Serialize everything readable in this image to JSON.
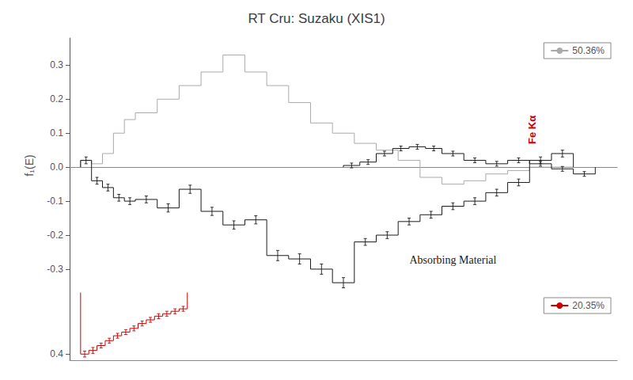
{
  "chart_data": [
    {
      "type": "step",
      "title": "RT Cru: Suzaku (XIS1)",
      "ylabel": "f₁(E)",
      "xlim": [
        1.3,
        11.3
      ],
      "xticks": [],
      "ylim": [
        -0.37,
        0.38
      ],
      "yticks": [
        -0.3,
        -0.2,
        -0.1,
        {
          "value": 0,
          "label": "0.0"
        },
        0.1,
        0.2,
        0.3
      ],
      "tick_labels": "y",
      "grid": false,
      "legend": "upper right",
      "annotations": [
        {
          "text": "Fe Kα",
          "color": "#cc0000"
        },
        {
          "text": "Absorbing Material",
          "color": "#1a1a1a"
        }
      ],
      "series": [
        {
          "name": "50.36%",
          "color": "#aaaaaa",
          "bins": [
            1.5,
            1.7,
            1.9,
            2.1,
            2.3,
            2.5,
            2.9,
            3.3,
            3.7,
            4.1,
            4.5,
            4.9,
            5.3,
            5.7,
            6.1,
            6.5,
            6.9,
            7.3,
            7.7,
            8.1,
            8.5,
            8.9,
            9.3,
            9.7,
            10.1,
            10.5
          ],
          "values": [
            0.02,
            0.01,
            0.04,
            0.1,
            0.14,
            0.16,
            0.2,
            0.24,
            0.28,
            0.33,
            0.28,
            0.24,
            0.19,
            0.13,
            0.1,
            0.07,
            0.05,
            0.02,
            -0.03,
            -0.05,
            -0.04,
            -0.02,
            -0.01,
            0.0,
            0.0
          ]
        },
        {
          "color": "#1a1a1a",
          "bins": [
            1.5,
            1.7,
            1.9,
            2.1,
            2.3,
            2.5,
            2.9,
            3.3,
            3.7,
            4.1,
            4.5,
            4.9,
            5.3,
            5.7,
            6.1,
            6.5,
            6.9,
            7.3,
            7.7,
            8.1,
            8.5,
            8.9,
            9.3,
            9.7,
            10.1,
            10.5
          ],
          "values": [
            0.02,
            -0.04,
            -0.06,
            -0.09,
            -0.1,
            -0.095,
            -0.12,
            -0.065,
            -0.13,
            -0.17,
            -0.155,
            -0.26,
            -0.27,
            -0.3,
            -0.34,
            -0.22,
            -0.2,
            -0.16,
            -0.14,
            -0.115,
            -0.1,
            -0.075,
            -0.045,
            0.02,
            0.04
          ],
          "error_x": [
            1.6,
            1.8,
            2.0,
            2.2,
            2.4,
            2.7,
            3.1,
            3.5,
            3.9,
            4.3,
            4.7,
            5.1,
            5.5,
            5.9,
            6.3,
            6.7,
            7.1,
            7.5,
            7.9,
            8.3,
            8.7,
            9.1,
            9.5,
            9.9,
            10.3
          ],
          "errors": [
            0.01,
            0.01,
            0.01,
            0.01,
            0.01,
            0.01,
            0.012,
            0.012,
            0.012,
            0.012,
            0.012,
            0.015,
            0.015,
            0.015,
            0.015,
            0.01,
            0.01,
            0.01,
            0.01,
            0.01,
            0.01,
            0.01,
            0.01,
            0.01,
            0.01
          ]
        },
        {
          "color": "#1a1a1a",
          "bins": [
            6.3,
            6.6,
            6.9,
            7.2,
            7.5,
            7.8,
            8.1,
            8.5,
            8.9,
            9.3,
            9.7,
            10.1,
            10.5,
            10.9
          ],
          "values": [
            0.005,
            0.015,
            0.04,
            0.055,
            0.06,
            0.055,
            0.04,
            0.02,
            0.01,
            0.02,
            0.01,
            -0.005,
            -0.02
          ],
          "error_x": [
            6.45,
            6.75,
            7.05,
            7.35,
            7.65,
            7.95,
            8.3,
            8.7,
            9.1,
            9.5,
            9.9,
            10.3,
            10.7
          ],
          "errors": [
            0.007,
            0.007,
            0.007,
            0.007,
            0.007,
            0.007,
            0.007,
            0.007,
            0.007,
            0.007,
            0.007,
            0.007,
            0.007
          ]
        }
      ]
    },
    {
      "type": "step",
      "xlim": [
        1.3,
        11.3
      ],
      "xticks": [],
      "ylim": [
        0.425,
        0.15
      ],
      "yticks": [
        0.4
      ],
      "tick_labels": "y",
      "grid": false,
      "legend": "upper right",
      "series": [
        {
          "name": "20.35%",
          "color": "#cc0000",
          "bins": [
            1.5,
            1.65,
            1.8,
            1.95,
            2.1,
            2.25,
            2.4,
            2.55,
            2.7,
            2.85,
            3.0,
            3.15,
            3.3,
            3.45
          ],
          "values": [
            0.4,
            0.385,
            0.365,
            0.345,
            0.325,
            0.31,
            0.295,
            0.275,
            0.26,
            0.245,
            0.235,
            0.225,
            0.215
          ],
          "error_x": [
            1.575,
            1.725,
            1.875,
            2.025,
            2.175,
            2.325,
            2.475,
            2.625,
            2.775,
            2.925,
            3.075,
            3.225,
            3.375
          ],
          "errors": [
            0.012,
            0.012,
            0.01,
            0.01,
            0.01,
            0.01,
            0.01,
            0.01,
            0.01,
            0.01,
            0.01,
            0.01,
            0.01
          ]
        }
      ]
    }
  ]
}
